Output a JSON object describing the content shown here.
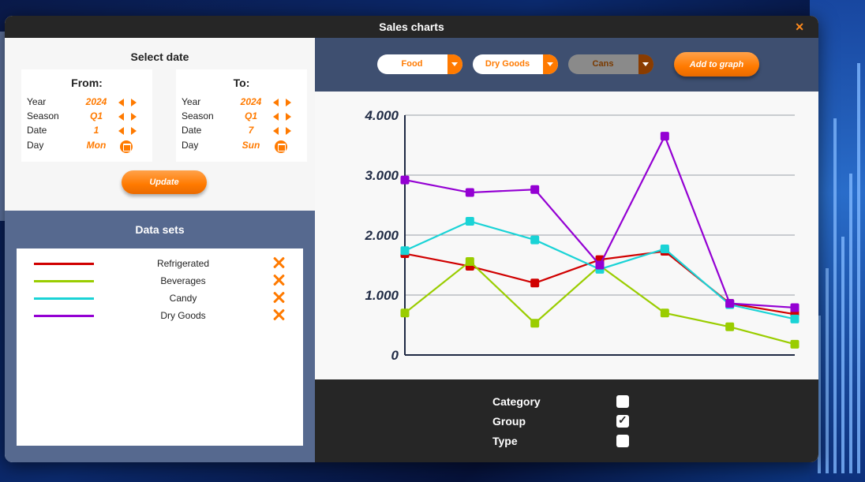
{
  "window": {
    "title": "Sales charts"
  },
  "date_panel": {
    "heading": "Select date",
    "from": {
      "title": "From:",
      "year": "2024",
      "season": "Q1",
      "date": "1",
      "day": "Mon"
    },
    "to": {
      "title": "To:",
      "year": "2024",
      "season": "Q1",
      "date": "7",
      "day": "Sun"
    },
    "labels": {
      "year": "Year",
      "season": "Season",
      "date": "Date",
      "day": "Day"
    },
    "update_label": "Update"
  },
  "datasets": {
    "heading": "Data sets",
    "items": [
      {
        "name": "Refrigerated",
        "color": "#d00000"
      },
      {
        "name": "Beverages",
        "color": "#9acd00"
      },
      {
        "name": "Candy",
        "color": "#1ad3d6"
      },
      {
        "name": "Dry Goods",
        "color": "#9400d3"
      }
    ]
  },
  "toolbar": {
    "category": "Food",
    "group": "Dry Goods",
    "type": "Cans",
    "add_label": "Add to graph"
  },
  "filters": {
    "category": {
      "label": "Category",
      "checked": false
    },
    "group": {
      "label": "Group",
      "checked": true
    },
    "type": {
      "label": "Type",
      "checked": false
    }
  },
  "chart_data": {
    "type": "line",
    "x": [
      1,
      2,
      3,
      4,
      5,
      6,
      7
    ],
    "ylim": [
      0,
      4000
    ],
    "yticks": [
      {
        "value": 0,
        "label": "0"
      },
      {
        "value": 1000,
        "label": "1.000"
      },
      {
        "value": 2000,
        "label": "2.000"
      },
      {
        "value": 3000,
        "label": "3.000"
      },
      {
        "value": 4000,
        "label": "4.000"
      }
    ],
    "grid": true,
    "series": [
      {
        "name": "Refrigerated",
        "color": "#d00000",
        "values": [
          1690,
          1480,
          1200,
          1590,
          1730,
          860,
          680
        ]
      },
      {
        "name": "Beverages",
        "color": "#9acd00",
        "values": [
          700,
          1560,
          530,
          1490,
          700,
          470,
          180
        ]
      },
      {
        "name": "Candy",
        "color": "#1ad3d6",
        "values": [
          1740,
          2230,
          1920,
          1430,
          1770,
          840,
          600
        ]
      },
      {
        "name": "Dry Goods",
        "color": "#9400d3",
        "values": [
          2920,
          2710,
          2760,
          1500,
          3650,
          860,
          790
        ]
      }
    ]
  }
}
